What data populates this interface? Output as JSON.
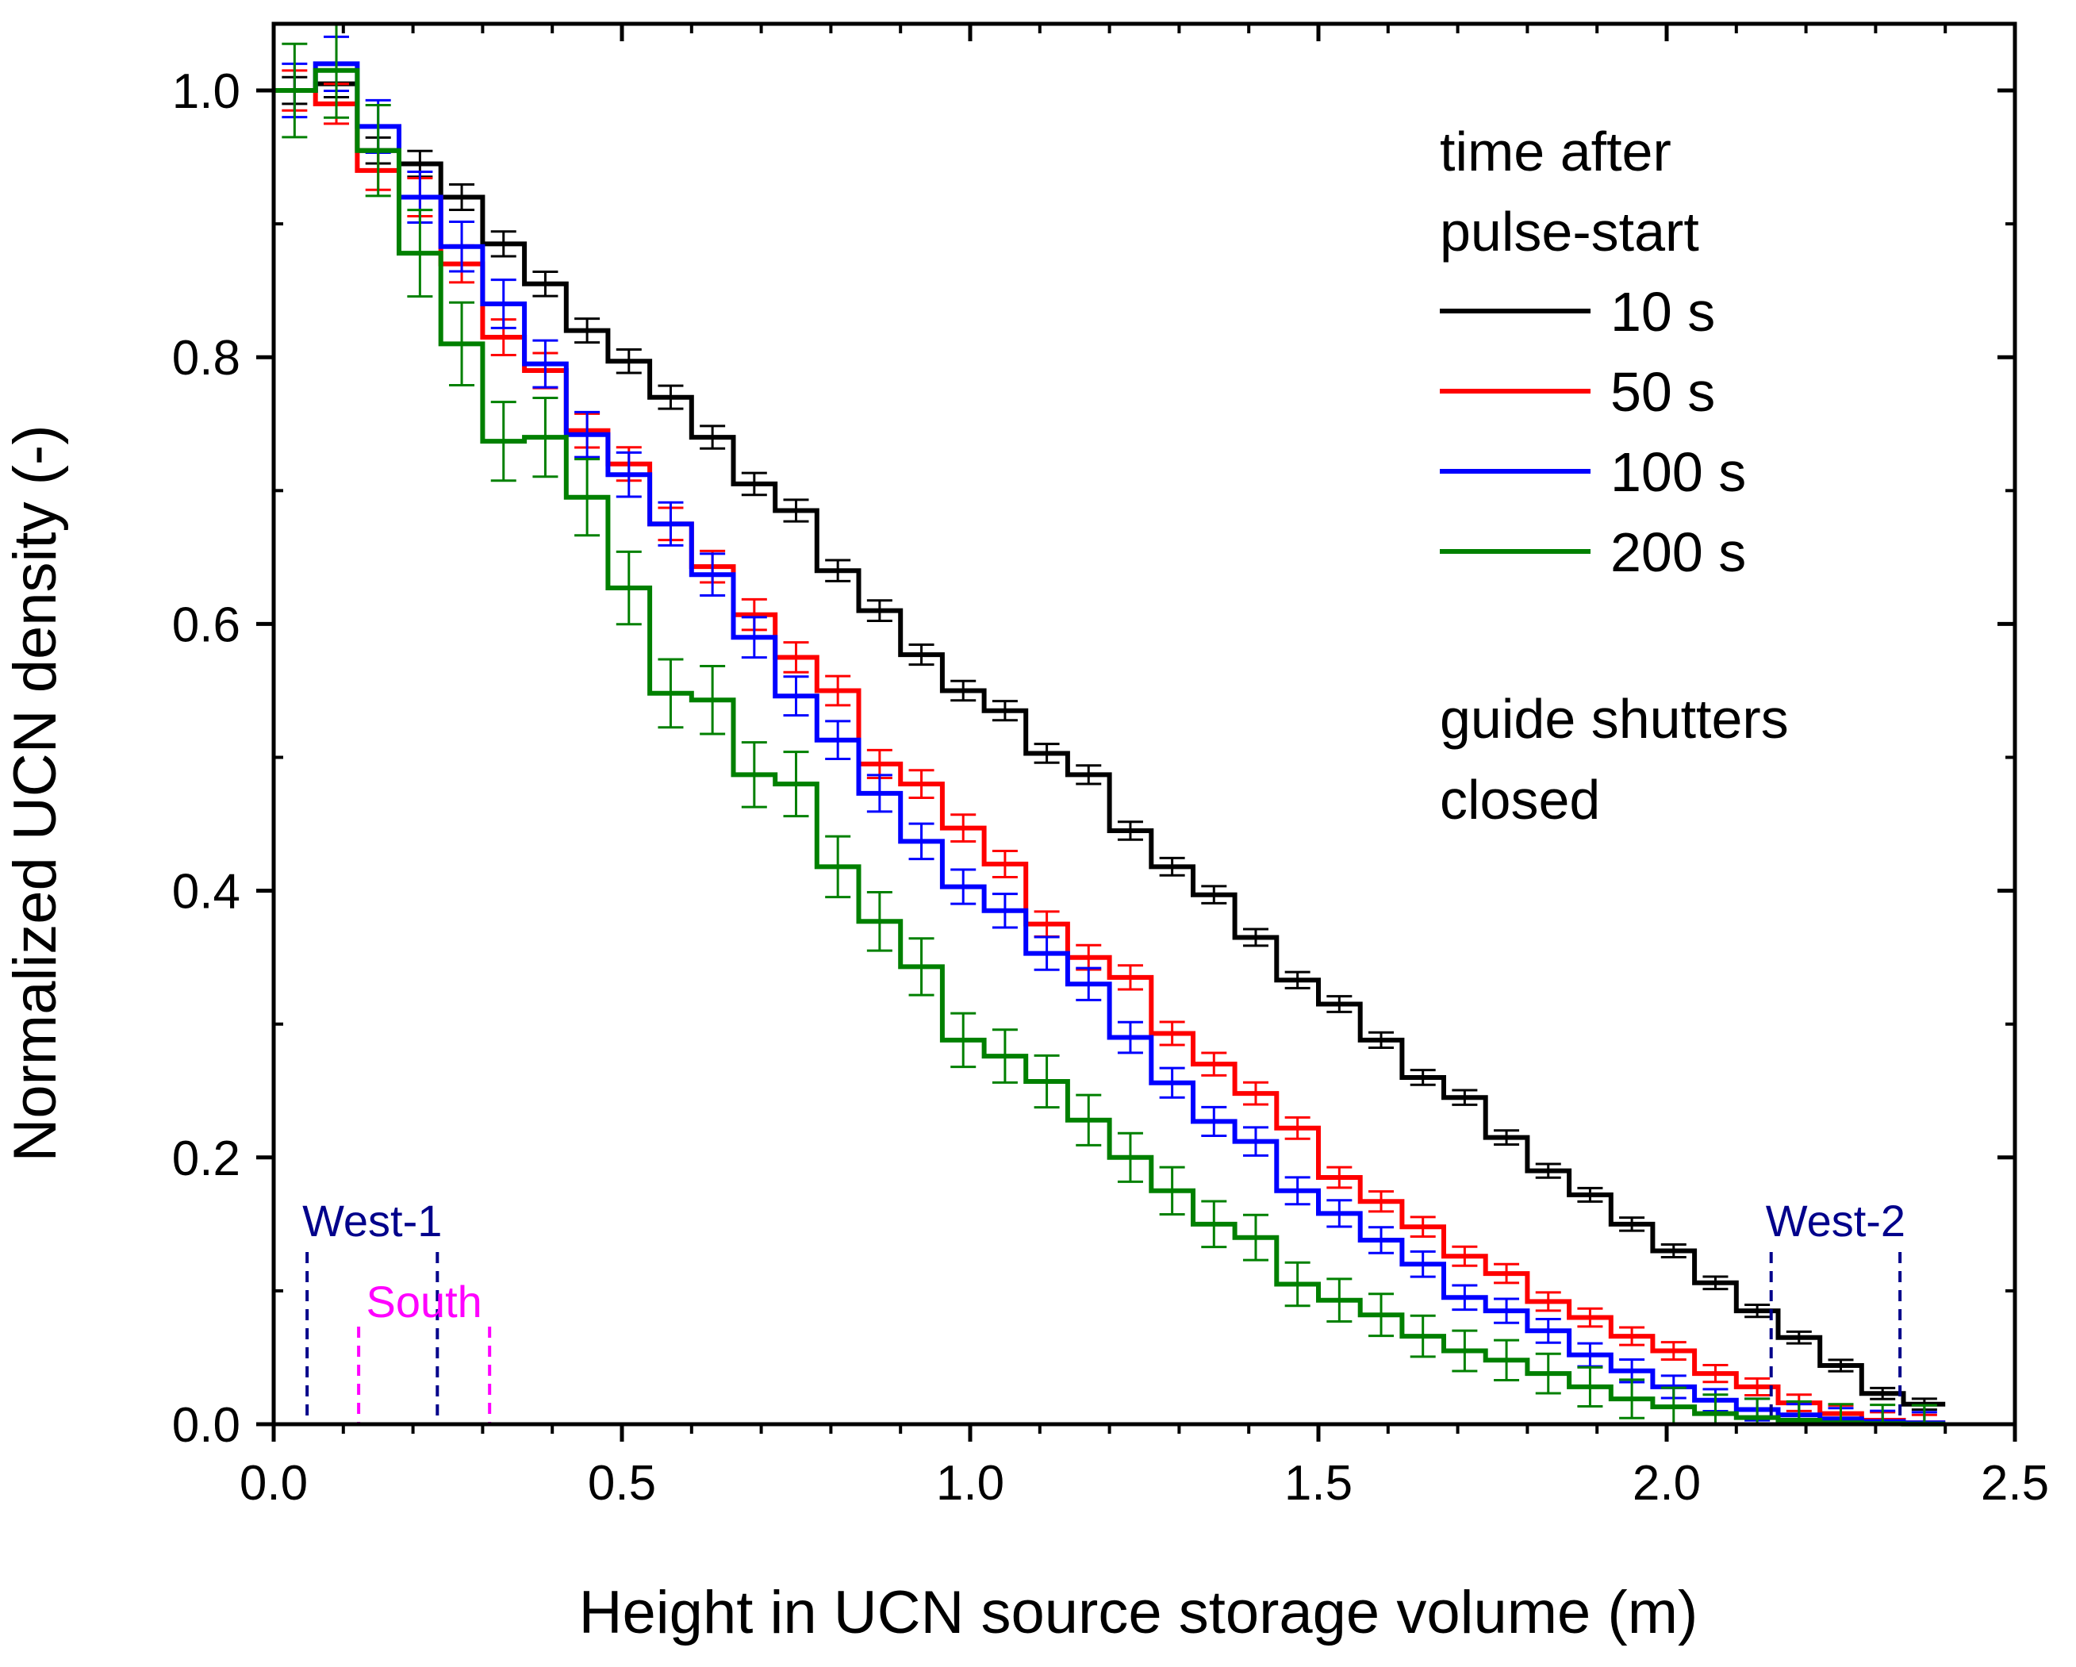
{
  "chart_data": {
    "type": "line",
    "style": "step-histogram-with-error-bars",
    "xlabel": "Height in UCN source storage volume (m)",
    "ylabel": "Normalized UCN density (-)",
    "xlim": [
      0.0,
      2.5
    ],
    "ylim": [
      0.0,
      1.05
    ],
    "xticks": [
      "0.0",
      "0.5",
      "1.0",
      "1.5",
      "2.0",
      "2.5"
    ],
    "yticks": [
      "0.0",
      "0.2",
      "0.4",
      "0.6",
      "0.8",
      "1.0"
    ],
    "xtick_values": [
      0.0,
      0.5,
      1.0,
      1.5,
      2.0,
      2.5
    ],
    "ytick_values": [
      0.0,
      0.2,
      0.4,
      0.6,
      0.8,
      1.0
    ],
    "bin_width": 0.06,
    "legend_title_line1": "time after",
    "legend_title_line2": "pulse-start",
    "annotation_line1": "guide shutters",
    "annotation_line2": "closed",
    "series": [
      {
        "name": "10 s",
        "color": "#000000",
        "x_start": 0.0,
        "values": [
          1.0,
          1.005,
          0.955,
          0.945,
          0.92,
          0.885,
          0.855,
          0.82,
          0.797,
          0.77,
          0.74,
          0.705,
          0.685,
          0.64,
          0.61,
          0.577,
          0.55,
          0.535,
          0.503,
          0.487,
          0.445,
          0.418,
          0.397,
          0.365,
          0.333,
          0.315,
          0.288,
          0.26,
          0.245,
          0.215,
          0.19,
          0.172,
          0.15,
          0.13,
          0.106,
          0.085,
          0.065,
          0.044,
          0.023,
          0.015
        ]
      },
      {
        "name": "50 s",
        "color": "#ff0000",
        "x_start": 0.0,
        "values": [
          1.0,
          0.99,
          0.94,
          0.92,
          0.87,
          0.815,
          0.79,
          0.745,
          0.72,
          0.675,
          0.643,
          0.607,
          0.575,
          0.55,
          0.495,
          0.48,
          0.447,
          0.42,
          0.375,
          0.35,
          0.335,
          0.293,
          0.27,
          0.248,
          0.222,
          0.185,
          0.167,
          0.148,
          0.126,
          0.113,
          0.092,
          0.08,
          0.066,
          0.055,
          0.038,
          0.028,
          0.016,
          0.008,
          0.003,
          0.001
        ]
      },
      {
        "name": "100 s",
        "color": "#0000ff",
        "x_start": 0.0,
        "values": [
          1.0,
          1.02,
          0.973,
          0.92,
          0.883,
          0.84,
          0.795,
          0.742,
          0.712,
          0.675,
          0.637,
          0.59,
          0.546,
          0.513,
          0.473,
          0.437,
          0.403,
          0.385,
          0.353,
          0.33,
          0.29,
          0.256,
          0.227,
          0.212,
          0.175,
          0.158,
          0.138,
          0.12,
          0.095,
          0.085,
          0.07,
          0.052,
          0.04,
          0.028,
          0.018,
          0.011,
          0.007,
          0.004,
          0.002,
          0.001
        ]
      },
      {
        "name": "200 s",
        "color": "#008000",
        "x_start": 0.0,
        "values": [
          1.0,
          1.015,
          0.955,
          0.878,
          0.81,
          0.737,
          0.74,
          0.695,
          0.627,
          0.548,
          0.543,
          0.487,
          0.48,
          0.418,
          0.377,
          0.343,
          0.288,
          0.276,
          0.257,
          0.228,
          0.2,
          0.175,
          0.15,
          0.14,
          0.105,
          0.093,
          0.082,
          0.066,
          0.055,
          0.048,
          0.038,
          0.028,
          0.019,
          0.013,
          0.008,
          0.005,
          0.003,
          0.001,
          0.0005,
          0.0002
        ]
      }
    ],
    "regions": [
      {
        "label": "West-1",
        "x_from": 0.048,
        "x_to": 0.235,
        "color": "#00008b",
        "level": "upper"
      },
      {
        "label": "South",
        "x_from": 0.122,
        "x_to": 0.31,
        "color": "#ff00ff",
        "level": "lower"
      },
      {
        "label": "West-2",
        "x_from": 2.15,
        "x_to": 2.335,
        "color": "#00008b",
        "level": "upper"
      }
    ]
  }
}
